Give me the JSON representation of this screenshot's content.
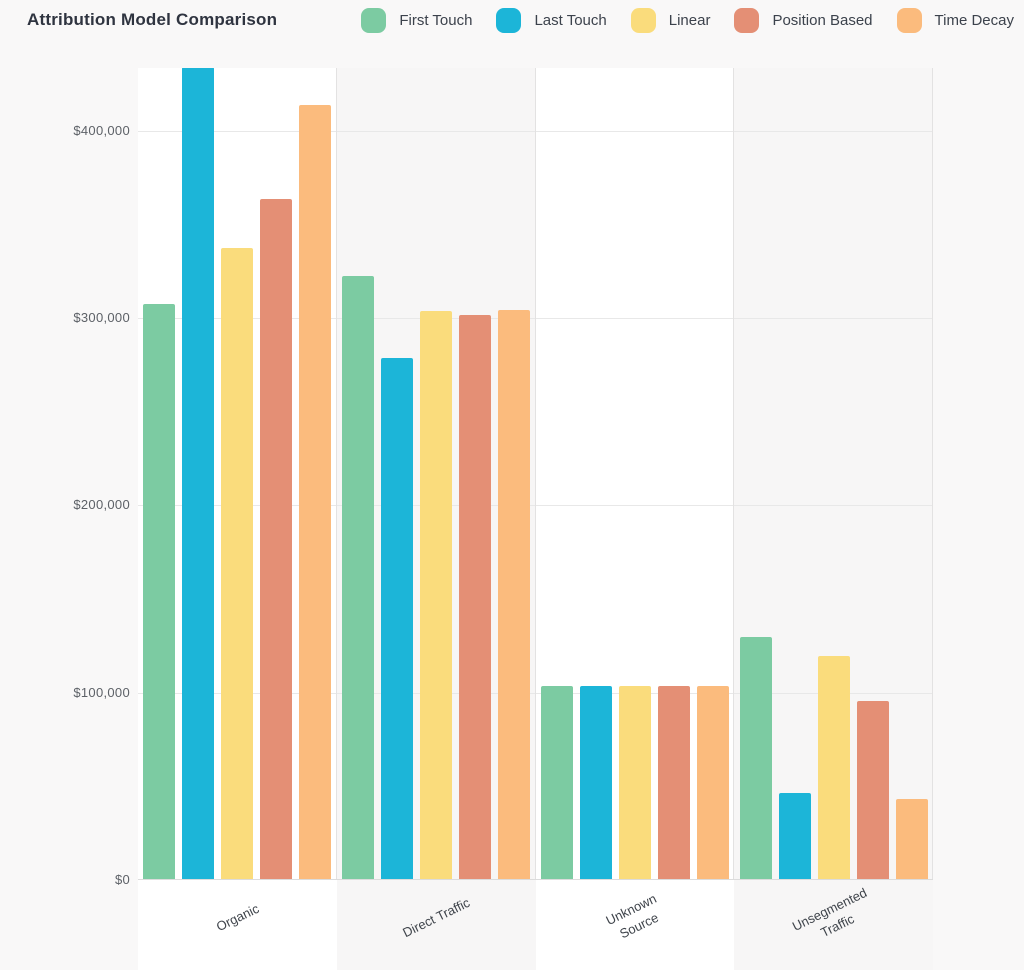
{
  "chart_data": {
    "type": "bar",
    "title": "Attribution Model Comparison",
    "legend_position": "top",
    "grid": true,
    "categories": [
      "Organic",
      "Direct Traffic",
      "Unknown Source",
      "Unsegmented Traffic"
    ],
    "category_label_lines": [
      [
        "Organic"
      ],
      [
        "Direct Traffic"
      ],
      [
        "Unknown",
        "Source"
      ],
      [
        "Unsegmented",
        "Traffic"
      ]
    ],
    "series": [
      {
        "name": "First Touch",
        "color": "#7CCBA2",
        "values": [
          307000,
          322000,
          103000,
          129000
        ]
      },
      {
        "name": "Last Touch",
        "color": "#1CB5D8",
        "values": [
          435000,
          278000,
          103000,
          46000
        ]
      },
      {
        "name": "Linear",
        "color": "#FADC7C",
        "values": [
          337000,
          303000,
          103000,
          119000
        ]
      },
      {
        "name": "Position Based",
        "color": "#E48F75",
        "values": [
          363000,
          301000,
          103000,
          95000
        ]
      },
      {
        "name": "Time Decay",
        "color": "#FBBB7D",
        "values": [
          413000,
          304000,
          103000,
          43000
        ]
      }
    ],
    "y_axis": {
      "ticks": [
        {
          "label": "$0",
          "value": 0
        },
        {
          "label": "$100,000",
          "value": 100000
        },
        {
          "label": "$200,000",
          "value": 200000
        },
        {
          "label": "$300,000",
          "value": 300000
        },
        {
          "label": "$400,000",
          "value": 400000
        }
      ],
      "max": 433500
    },
    "colors": {
      "page_bg": "#f9f8f8",
      "band_white": "#ffffff",
      "band_gray": "#f7f6f6",
      "gridline": "#e8e8e8",
      "baseline": "#dcdcdc",
      "vline": "#e3e2e2",
      "title_text": "#2f3440",
      "legend_text": "#3c424c",
      "tick_text": "#5d6167",
      "label_text": "#3f444b"
    }
  }
}
